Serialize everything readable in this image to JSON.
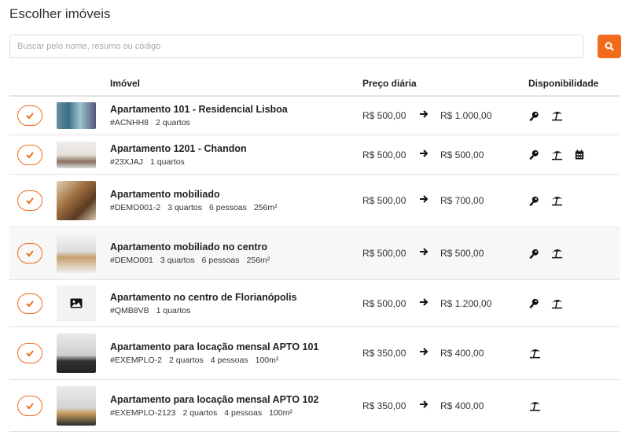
{
  "header": {
    "title": "Escolher imóveis"
  },
  "search": {
    "placeholder": "Buscar pelo nome, resumo ou código"
  },
  "table": {
    "columns": [
      "Imóvel",
      "Preço diária",
      "Disponibilidade"
    ],
    "rows": [
      {
        "name": "Apartamento 101 - Residencial Lisboa",
        "code": "#ACNHH8",
        "details": [
          "2 quartos"
        ],
        "price_from": "R$ 500,00",
        "price_to": "R$ 1.000,00"
      },
      {
        "name": "Apartamento 1201 - Chandon",
        "code": "#23XJAJ",
        "details": [
          "1 quartos"
        ],
        "price_from": "R$ 500,00",
        "price_to": "R$ 500,00"
      },
      {
        "name": "Apartamento mobiliado",
        "code": "#DEMO001-2",
        "details": [
          "3 quartos",
          "6 pessoas",
          "256m²"
        ],
        "price_from": "R$ 500,00",
        "price_to": "R$ 700,00"
      },
      {
        "name": "Apartamento mobiliado no centro",
        "code": "#DEMO001",
        "details": [
          "3 quartos",
          "6 pessoas",
          "256m²"
        ],
        "price_from": "R$ 500,00",
        "price_to": "R$ 500,00"
      },
      {
        "name": "Apartamento no centro de Florianópolis",
        "code": "#QMB8VB",
        "details": [
          "1 quartos"
        ],
        "price_from": "R$ 500,00",
        "price_to": "R$ 1.200,00"
      },
      {
        "name": "Apartamento para locação mensal APTO 101",
        "code": "#EXEMPLO-2",
        "details": [
          "2 quartos",
          "4 pessoas",
          "100m²"
        ],
        "price_from": "R$ 350,00",
        "price_to": "R$ 400,00"
      },
      {
        "name": "Apartamento para locação mensal APTO 102",
        "code": "#EXEMPLO-2123",
        "details": [
          "2 quartos",
          "4 pessoas",
          "100m²"
        ],
        "price_from": "R$ 350,00",
        "price_to": "R$ 400,00"
      }
    ]
  }
}
